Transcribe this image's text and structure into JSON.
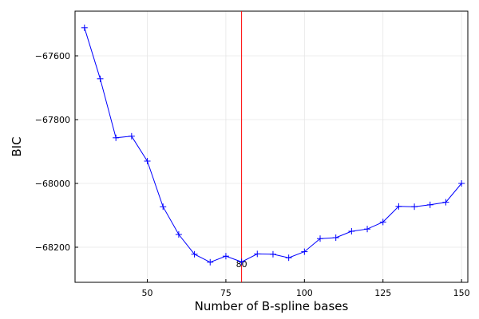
{
  "chart_data": {
    "type": "line",
    "xlabel": "Number of B-spline bases",
    "ylabel": "BIC",
    "xlim": [
      27,
      152
    ],
    "ylim": [
      -68310,
      -67460
    ],
    "x_ticks": [
      50,
      75,
      100,
      125,
      150
    ],
    "y_ticks": [
      -67600,
      -67800,
      -68000,
      -68200
    ],
    "grid": true,
    "legend": "none",
    "series_color": "#0000ff",
    "marker": "plus",
    "series": [
      {
        "x": [
          30,
          35,
          40,
          45,
          50,
          55,
          60,
          65,
          70,
          75,
          80,
          85,
          90,
          95,
          100,
          105,
          110,
          115,
          120,
          125,
          130,
          135,
          140,
          145,
          150
        ],
        "y": [
          -67512,
          -67672,
          -67857,
          -67852,
          -67930,
          -68073,
          -68160,
          -68222,
          -68247,
          -68228,
          -68246,
          -68221,
          -68222,
          -68233,
          -68214,
          -68173,
          -68170,
          -68150,
          -68143,
          -68121,
          -68072,
          -68073,
          -68067,
          -68059,
          -68000
        ]
      }
    ],
    "vline": {
      "x": 80,
      "label": "80",
      "color": "#ff0000"
    }
  }
}
